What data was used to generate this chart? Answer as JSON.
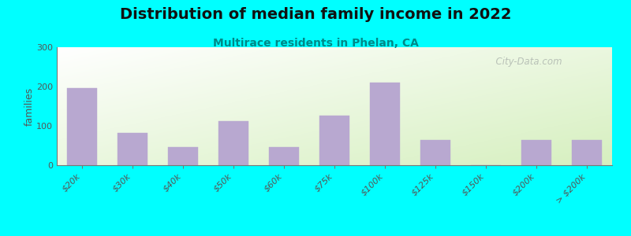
{
  "title": "Distribution of median family income in 2022",
  "subtitle": "Multirace residents in Phelan, CA",
  "ylabel": "families",
  "background_outer": "#00FFFF",
  "bar_color": "#b8a8d0",
  "bar_edge_color": "#9988bb",
  "categories": [
    "$20k",
    "$30k",
    "$40k",
    "$50k",
    "$60k",
    "$75k",
    "$100k",
    "$125k",
    "$150k",
    "$200k",
    "> $200k"
  ],
  "values": [
    197,
    83,
    47,
    112,
    47,
    127,
    210,
    65,
    0,
    65,
    65
  ],
  "ylim": [
    0,
    300
  ],
  "yticks": [
    0,
    100,
    200,
    300
  ],
  "title_fontsize": 14,
  "subtitle_fontsize": 10,
  "ylabel_fontsize": 9,
  "tick_fontsize": 8,
  "watermark": "  City-Data.com"
}
